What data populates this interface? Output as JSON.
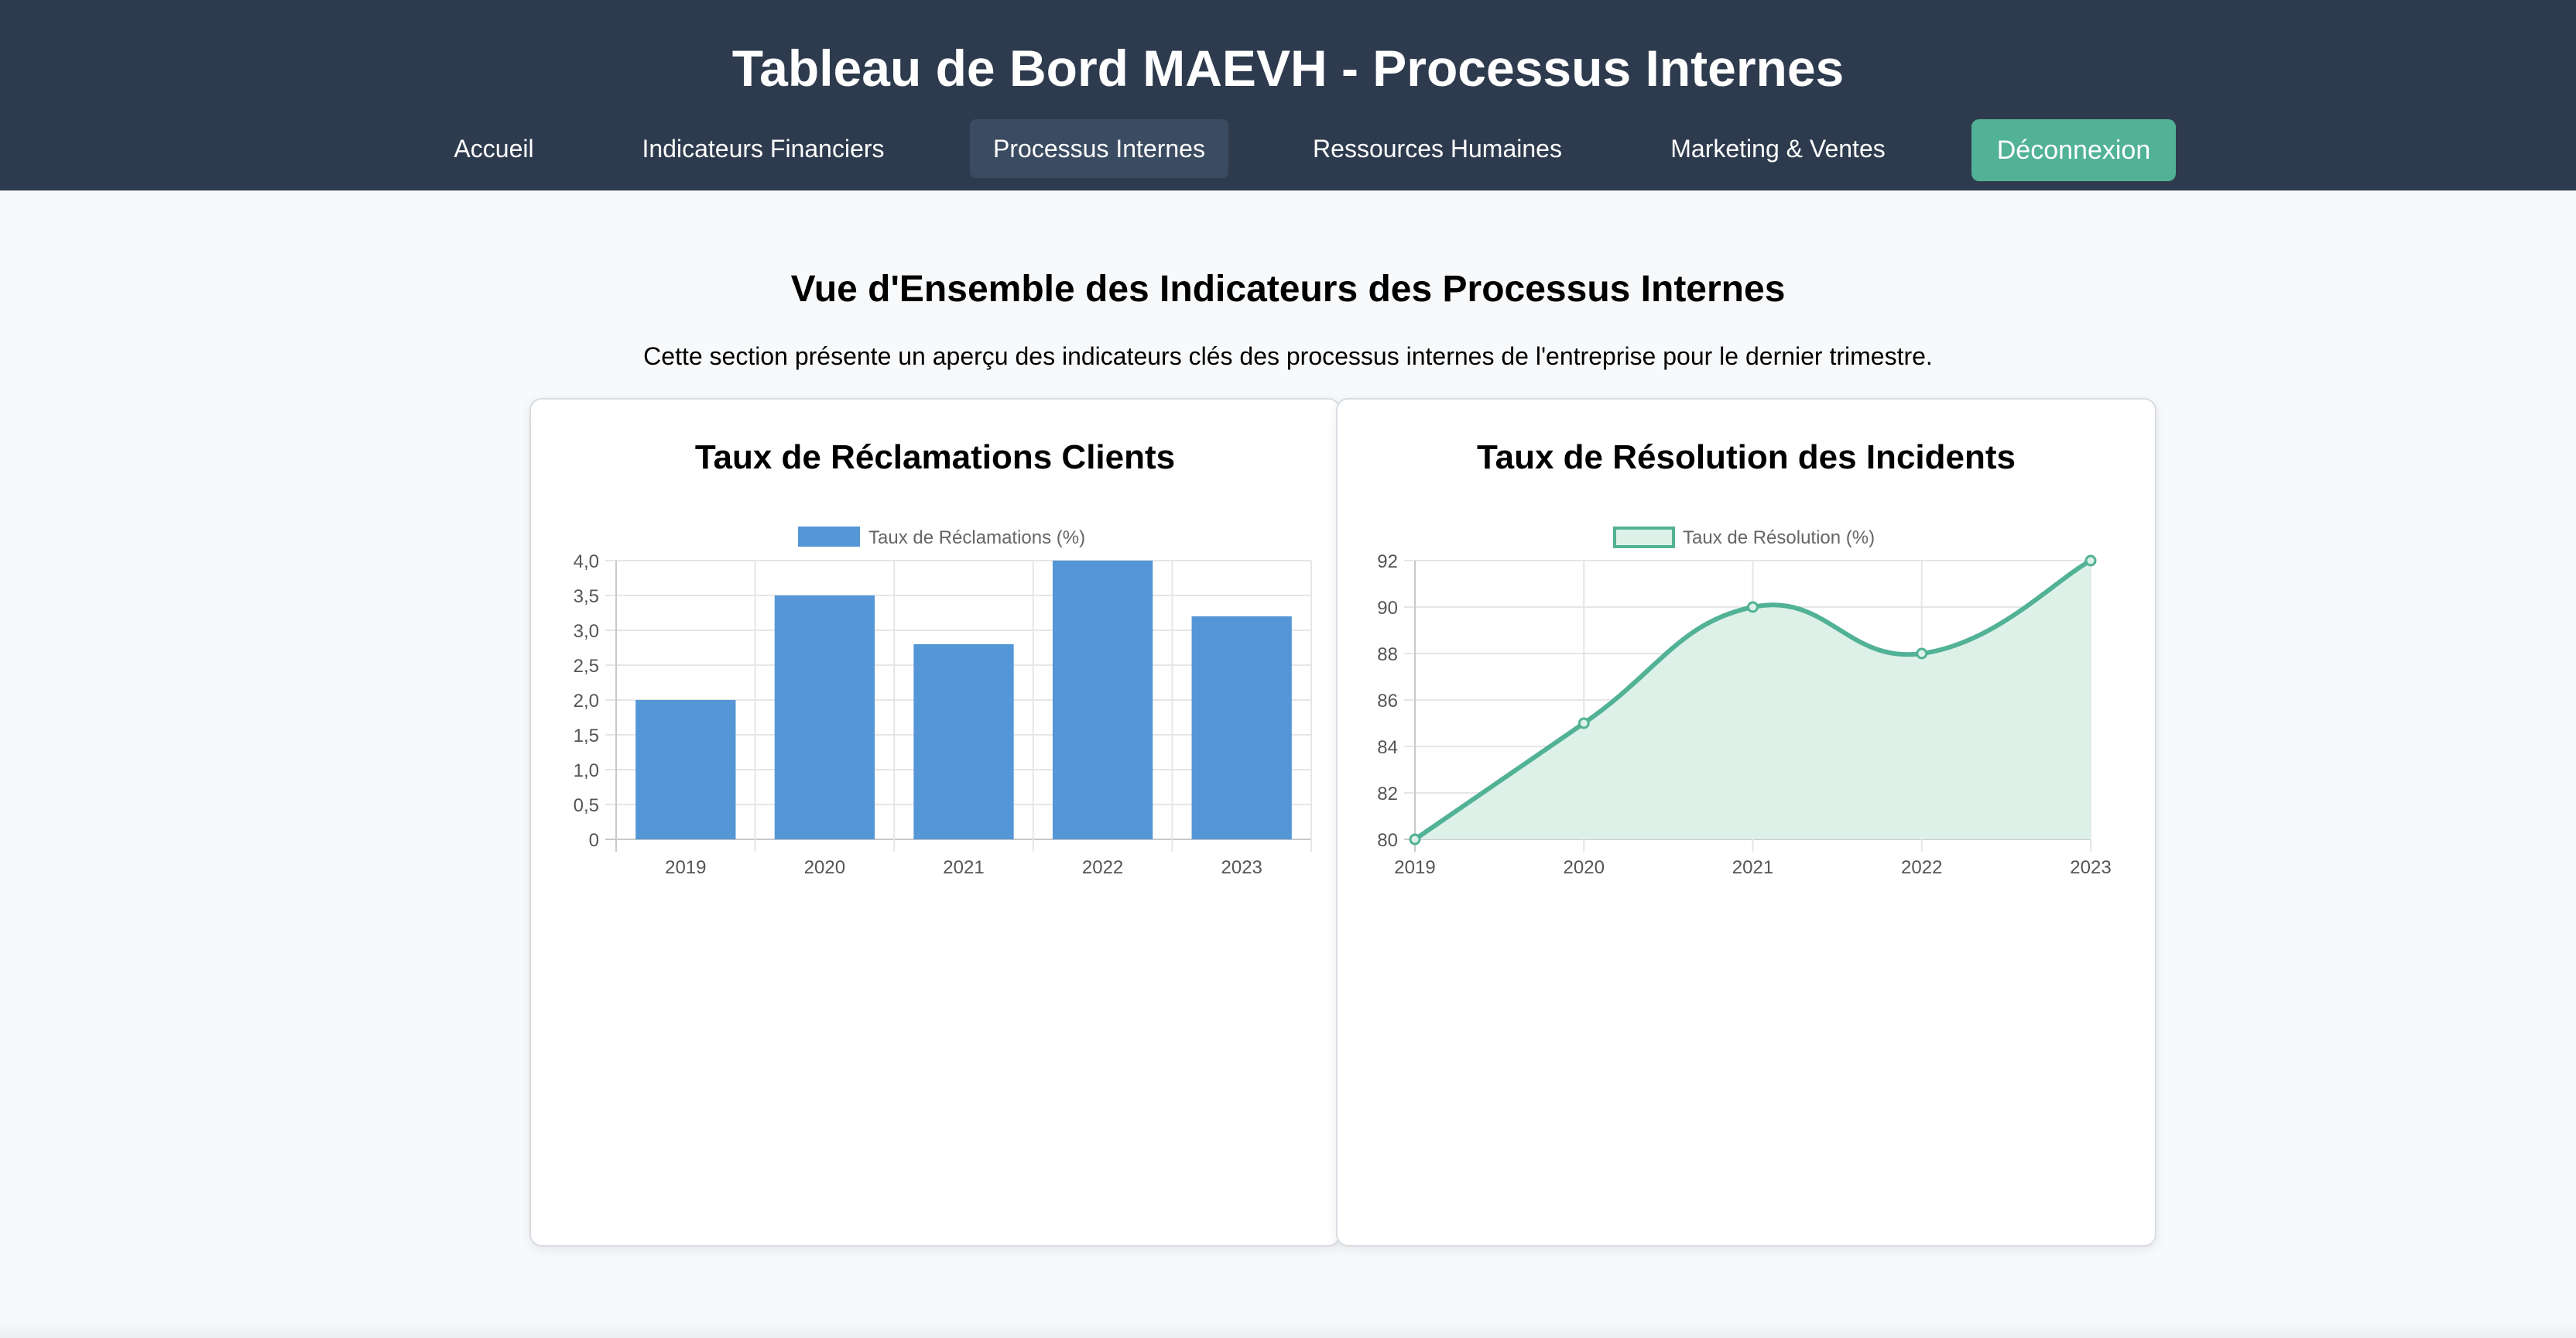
{
  "header": {
    "title": "Tableau de Bord MAEVH - Processus Internes",
    "nav": [
      {
        "label": "Accueil",
        "active": false
      },
      {
        "label": "Indicateurs Financiers",
        "active": false
      },
      {
        "label": "Processus Internes",
        "active": true
      },
      {
        "label": "Ressources Humaines",
        "active": false
      },
      {
        "label": "Marketing & Ventes",
        "active": false
      }
    ],
    "logout_label": "Déconnexion"
  },
  "main": {
    "title": "Vue d'Ensemble des Indicateurs des Processus Internes",
    "description": "Cette section présente un aperçu des indicateurs clés des processus internes de l'entreprise pour le dernier trimestre."
  },
  "colors": {
    "header_bg": "#2e3b4e",
    "bar": "#5596d6",
    "line": "#52b295",
    "line_fill": "#ddf1e9",
    "logout": "#52b295"
  },
  "chart_data": [
    {
      "type": "bar",
      "title": "Taux de Réclamations Clients",
      "categories": [
        "2019",
        "2020",
        "2021",
        "2022",
        "2023"
      ],
      "series": [
        {
          "name": "Taux de Réclamations (%)",
          "values": [
            2.0,
            3.5,
            2.8,
            4.0,
            3.2
          ]
        }
      ],
      "ylim": [
        0,
        4.0
      ],
      "yticks": [
        "0",
        "0,5",
        "1,0",
        "1,5",
        "2,0",
        "2,5",
        "3,0",
        "3,5",
        "4,0"
      ],
      "grid": true,
      "legend": "top-center"
    },
    {
      "type": "area",
      "title": "Taux de Résolution des Incidents",
      "categories": [
        "2019",
        "2020",
        "2021",
        "2022",
        "2023"
      ],
      "series": [
        {
          "name": "Taux de Résolution (%)",
          "values": [
            80,
            85,
            90,
            88,
            92
          ]
        }
      ],
      "ylim": [
        80,
        92
      ],
      "yticks": [
        "80",
        "82",
        "84",
        "86",
        "88",
        "90",
        "92"
      ],
      "grid": true,
      "legend": "top-center"
    }
  ]
}
